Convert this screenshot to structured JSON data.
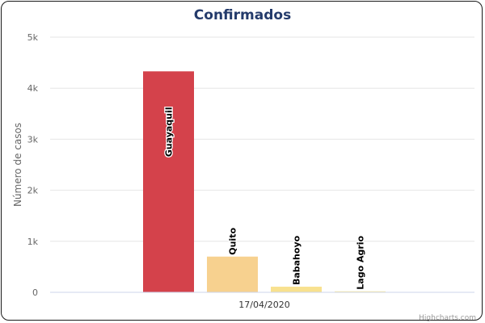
{
  "chart_data": {
    "type": "bar",
    "title": "Confirmados",
    "ylabel": "Número de casos",
    "ylim": [
      0,
      5000
    ],
    "yticks": [
      0,
      1000,
      2000,
      3000,
      4000,
      5000
    ],
    "ytick_labels": [
      "0",
      "1k",
      "2k",
      "3k",
      "4k",
      "5k"
    ],
    "categories": [
      "17/04/2020"
    ],
    "series": [
      {
        "name": "Guayaquil",
        "values": [
          4330
        ],
        "color": "#d4424b"
      },
      {
        "name": "Quito",
        "values": [
          700
        ],
        "color": "#f7d18f"
      },
      {
        "name": "Babahoyo",
        "values": [
          110
        ],
        "color": "#f8e18f"
      },
      {
        "name": "Lago Agrio",
        "values": [
          20
        ],
        "color": "#fbeaa0"
      }
    ],
    "grid": true,
    "legend": "none",
    "credit": "Highcharts.com"
  }
}
